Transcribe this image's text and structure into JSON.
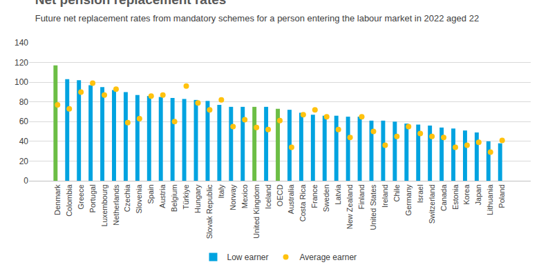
{
  "chart_data": {
    "type": "bar",
    "title": "Net pension replacement rates",
    "subtitle": "Future net replacement rates from mandatory schemes for a person entering the labour market in 2022 aged 22",
    "categories": [
      "Denmark",
      "Colombia",
      "Greece",
      "Portugal",
      "Luxembourg",
      "Netherlands",
      "Czechia",
      "Slovenia",
      "Spain",
      "Austria",
      "Belgium",
      "Türkiye",
      "Hungary",
      "Slovak Republic",
      "Italy",
      "Norway",
      "Mexico",
      "United Kingdom",
      "Iceland",
      "OECD",
      "Australia",
      "Costa Rica",
      "France",
      "Sweden",
      "Latvia",
      "New Zealand",
      "Finland",
      "United States",
      "Ireland",
      "Chile",
      "Germany",
      "Israel",
      "Switzerland",
      "Canada",
      "Estonia",
      "Korea",
      "Japan",
      "Lithuania",
      "Poland"
    ],
    "series": [
      {
        "name": "Low earner",
        "type": "bar",
        "color": "#00A3E0",
        "colors": [
          "#6CBE45",
          "#00A3E0",
          "#00A3E0",
          "#00A3E0",
          "#00A3E0",
          "#00A3E0",
          "#00A3E0",
          "#00A3E0",
          "#00A3E0",
          "#00A3E0",
          "#00A3E0",
          "#00A3E0",
          "#00A3E0",
          "#00A3E0",
          "#00A3E0",
          "#00A3E0",
          "#00A3E0",
          "#6CBE45",
          "#00A3E0",
          "#6CBE45",
          "#00A3E0",
          "#00A3E0",
          "#00A3E0",
          "#00A3E0",
          "#00A3E0",
          "#00A3E0",
          "#00A3E0",
          "#00A3E0",
          "#00A3E0",
          "#00A3E0",
          "#00A3E0",
          "#00A3E0",
          "#00A3E0",
          "#00A3E0",
          "#00A3E0",
          "#00A3E0",
          "#00A3E0",
          "#00A3E0",
          "#00A3E0"
        ],
        "values": [
          117,
          103,
          102,
          97,
          95,
          92,
          90,
          87,
          86,
          85,
          84,
          83,
          82,
          81,
          77,
          75,
          75,
          75,
          75,
          73,
          72,
          69,
          67,
          66,
          66,
          65,
          65,
          61,
          61,
          60,
          58,
          57,
          56,
          54,
          53,
          51,
          49,
          40,
          38
        ]
      },
      {
        "name": "Average earner",
        "type": "scatter",
        "marker": "circle",
        "color": "#FFC20E",
        "values": [
          77,
          73,
          90,
          99,
          87,
          93,
          59,
          63,
          86,
          87,
          60,
          96,
          79,
          72,
          82,
          55,
          62,
          54,
          52,
          61,
          34,
          67,
          72,
          65,
          52,
          44,
          65,
          50,
          36,
          45,
          55,
          48,
          45,
          44,
          34,
          36,
          39,
          29,
          41
        ]
      }
    ],
    "ylim": [
      0,
      140
    ],
    "yticks": [
      0,
      20,
      40,
      60,
      80,
      100,
      120,
      140
    ],
    "grid": true,
    "legend": "bottom"
  }
}
